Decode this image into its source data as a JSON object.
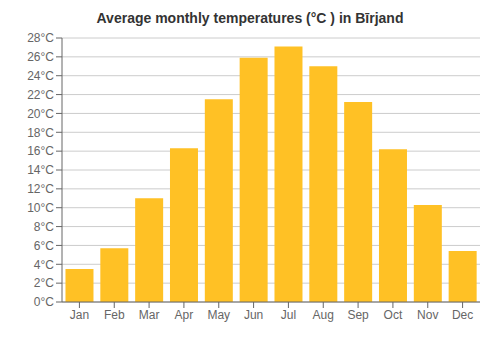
{
  "chart_data": {
    "type": "bar",
    "title": "Average monthly temperatures (°C ) in Bīrjand",
    "categories": [
      "Jan",
      "Feb",
      "Mar",
      "Apr",
      "May",
      "Jun",
      "Jul",
      "Aug",
      "Sep",
      "Oct",
      "Nov",
      "Dec"
    ],
    "values": [
      3.5,
      5.7,
      11.0,
      16.3,
      21.5,
      25.9,
      27.1,
      25.0,
      21.2,
      16.2,
      10.3,
      5.4
    ],
    "color": "#FFC125",
    "ylim": [
      0,
      28
    ],
    "yticks": [
      {
        "value": 0,
        "label": "0°C"
      },
      {
        "value": 2,
        "label": "2°C"
      },
      {
        "value": 4,
        "label": "4°C"
      },
      {
        "value": 6,
        "label": "6°C"
      },
      {
        "value": 8,
        "label": "8°C"
      },
      {
        "value": 10,
        "label": "10°C"
      },
      {
        "value": 12,
        "label": "12°C"
      },
      {
        "value": 14,
        "label": "14°C"
      },
      {
        "value": 16,
        "label": "16°C"
      },
      {
        "value": 18,
        "label": "18°C"
      },
      {
        "value": 20,
        "label": "20°C"
      },
      {
        "value": 22,
        "label": "22°C"
      },
      {
        "value": 24,
        "label": "24°C"
      },
      {
        "value": 26,
        "label": "26°C"
      },
      {
        "value": 28,
        "label": "28°C"
      }
    ],
    "grid": true
  }
}
